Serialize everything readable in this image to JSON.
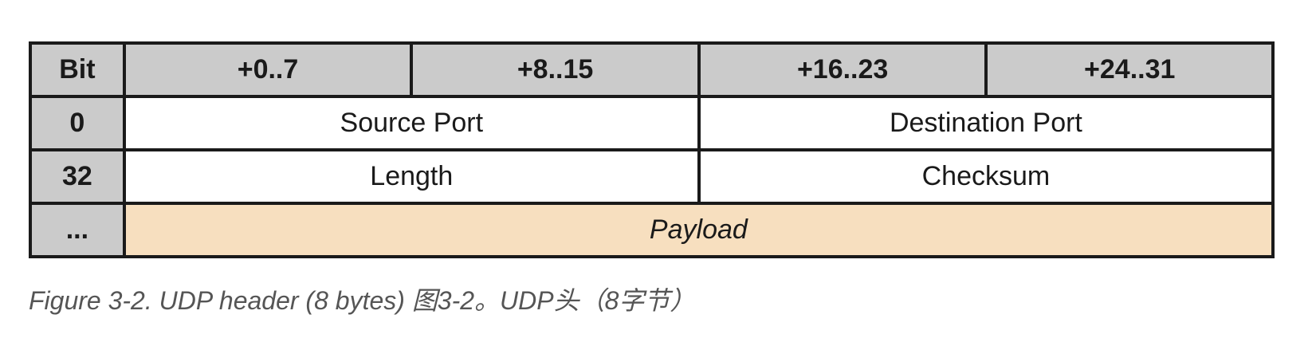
{
  "table": {
    "header": {
      "bit": "Bit",
      "cols": [
        "+0..7",
        "+8..15",
        "+16..23",
        "+24..31"
      ]
    },
    "rows": [
      {
        "offset": "0",
        "fields": [
          "Source Port",
          "Destination Port"
        ]
      },
      {
        "offset": "32",
        "fields": [
          "Length",
          "Checksum"
        ]
      },
      {
        "offset": "...",
        "fields": [
          "Payload"
        ]
      }
    ]
  },
  "caption": "Figure 3-2. UDP header (8 bytes) 图3-2。UDP头（8字节）",
  "colors": {
    "header_bg": "#cbcbcb",
    "payload_bg": "#f7dfbf",
    "border": "#1a1a1a"
  }
}
